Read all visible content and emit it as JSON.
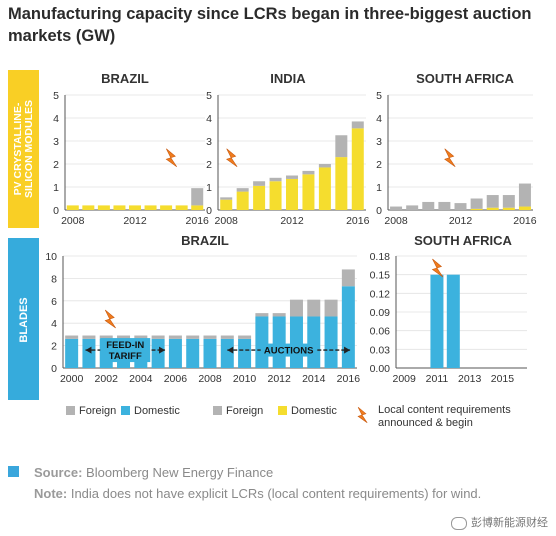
{
  "title": "Manufacturing capacity since LCRs began in three-biggest auction markets (GW)",
  "row_labels": {
    "pv": [
      "PV CRYSTALLINE-",
      "SILICON MODULES"
    ],
    "blades": "BLADES"
  },
  "colors": {
    "foreign": "#b3b3b3",
    "pv_domestic": "#f5dd2e",
    "blade_domestic": "#3cb2de",
    "row_label_pv_bg": "#f9cf25",
    "row_label_blades_bg": "#36abdc",
    "lcr_icon": "#f07c1e",
    "axis": "#555555",
    "grid": "#e2e2e2",
    "arrow": "#222222"
  },
  "legend": {
    "blades_foreign": "Foreign",
    "blades_domestic": "Domestic",
    "pv_foreign": "Foreign",
    "pv_domestic": "Domestic",
    "lcr_note": [
      "Local content requirements",
      "announced & begin"
    ],
    "lcr_icon": "lightning-bolt-icon"
  },
  "source": {
    "source_label": "Source:",
    "source_text": "Bloomberg New Energy Finance",
    "note_label": "Note:",
    "note_text": "India does not have explicit LCRs (local content requirements) for wind."
  },
  "watermark": "彭博新能源财经",
  "chart_data": [
    {
      "type": "bar",
      "stacked": true,
      "title": "BRAZIL",
      "row": "PV CRYSTALLINE-SILICON MODULES",
      "categories": [
        2008,
        2009,
        2010,
        2011,
        2012,
        2013,
        2014,
        2015,
        2016
      ],
      "xticks": [
        "2008",
        "2012",
        "2016"
      ],
      "ylim": [
        0,
        5
      ],
      "yticks": [
        0,
        1,
        2,
        3,
        4,
        5
      ],
      "series": [
        {
          "name": "Domestic",
          "values": [
            0.2,
            0.2,
            0.2,
            0.2,
            0.2,
            0.2,
            0.2,
            0.2,
            0.2
          ]
        },
        {
          "name": "Foreign",
          "values": [
            0,
            0,
            0,
            0,
            0,
            0,
            0,
            0,
            0.75
          ]
        }
      ],
      "lcr_year": 2014.3
    },
    {
      "type": "bar",
      "stacked": true,
      "title": "INDIA",
      "row": "PV CRYSTALLINE-SILICON MODULES",
      "categories": [
        2008,
        2009,
        2010,
        2011,
        2012,
        2013,
        2014,
        2015,
        2016
      ],
      "xticks": [
        "2008",
        "2012",
        "2016"
      ],
      "ylim": [
        0,
        5
      ],
      "yticks": [
        0,
        1,
        2,
        3,
        4,
        5
      ],
      "series": [
        {
          "name": "Domestic",
          "values": [
            0.45,
            0.8,
            1.05,
            1.25,
            1.35,
            1.55,
            1.85,
            2.3,
            3.55
          ]
        },
        {
          "name": "Foreign",
          "values": [
            0.1,
            0.15,
            0.2,
            0.15,
            0.15,
            0.15,
            0.15,
            0.95,
            0.3
          ]
        }
      ],
      "lcr_year": 2008.3
    },
    {
      "type": "bar",
      "stacked": true,
      "title": "SOUTH AFRICA",
      "row": "PV CRYSTALLINE-SILICON MODULES",
      "categories": [
        2008,
        2009,
        2010,
        2011,
        2012,
        2013,
        2014,
        2015,
        2016
      ],
      "xticks": [
        "2008",
        "2012",
        "2016"
      ],
      "ylim": [
        0,
        5
      ],
      "yticks": [
        0,
        1,
        2,
        3,
        4,
        5
      ],
      "series": [
        {
          "name": "Domestic",
          "values": [
            0,
            0,
            0,
            0,
            0,
            0.05,
            0.1,
            0.1,
            0.15
          ]
        },
        {
          "name": "Foreign",
          "values": [
            0.15,
            0.2,
            0.35,
            0.35,
            0.3,
            0.45,
            0.55,
            0.55,
            1.0
          ]
        }
      ],
      "lcr_year": 2011.3
    },
    {
      "type": "bar",
      "stacked": true,
      "title": "BRAZIL",
      "row": "BLADES",
      "categories": [
        2000,
        2001,
        2002,
        2003,
        2004,
        2005,
        2006,
        2007,
        2008,
        2009,
        2010,
        2011,
        2012,
        2013,
        2014,
        2015,
        2016
      ],
      "xticks": [
        "2000",
        "2002",
        "2004",
        "2006",
        "2008",
        "2010",
        "2012",
        "2014",
        "2016"
      ],
      "ylim": [
        0,
        10
      ],
      "yticks": [
        0,
        2,
        4,
        6,
        8,
        10
      ],
      "series": [
        {
          "name": "Domestic",
          "values": [
            2.6,
            2.6,
            2.6,
            2.6,
            2.6,
            2.6,
            2.6,
            2.6,
            2.6,
            2.6,
            2.6,
            4.6,
            4.6,
            4.6,
            4.6,
            4.6,
            7.3
          ]
        },
        {
          "name": "Foreign",
          "values": [
            0.3,
            0.3,
            0.3,
            0.3,
            0.3,
            0.3,
            0.3,
            0.3,
            0.3,
            0.3,
            0.3,
            0.3,
            0.3,
            1.5,
            1.5,
            1.5,
            1.5
          ]
        }
      ],
      "lcr_year": 2002.2,
      "annotations": [
        {
          "text": [
            "FEED-IN",
            "TARIFF"
          ],
          "from": 2000.8,
          "to": 2005.4
        },
        {
          "text": [
            "AUCTIONS"
          ],
          "from": 2009.0,
          "to": 2016.1
        }
      ]
    },
    {
      "type": "bar",
      "stacked": true,
      "title": "SOUTH AFRICA",
      "row": "BLADES",
      "categories": [
        2009,
        2010,
        2011,
        2012,
        2013,
        2014,
        2015,
        2016
      ],
      "xticks": [
        "2009",
        "2011",
        "2013",
        "2015"
      ],
      "ylim": [
        0,
        0.18
      ],
      "yticks": [
        "0.00",
        "0.03",
        "0.06",
        "0.09",
        "0.12",
        "0.15",
        "0.18"
      ],
      "series": [
        {
          "name": "Domestic",
          "values": [
            0,
            0,
            0.15,
            0.15,
            0,
            0,
            0,
            0
          ]
        },
        {
          "name": "Foreign",
          "values": [
            0,
            0,
            0,
            0,
            0,
            0,
            0,
            0
          ]
        }
      ],
      "lcr_year": 2011.0
    }
  ]
}
